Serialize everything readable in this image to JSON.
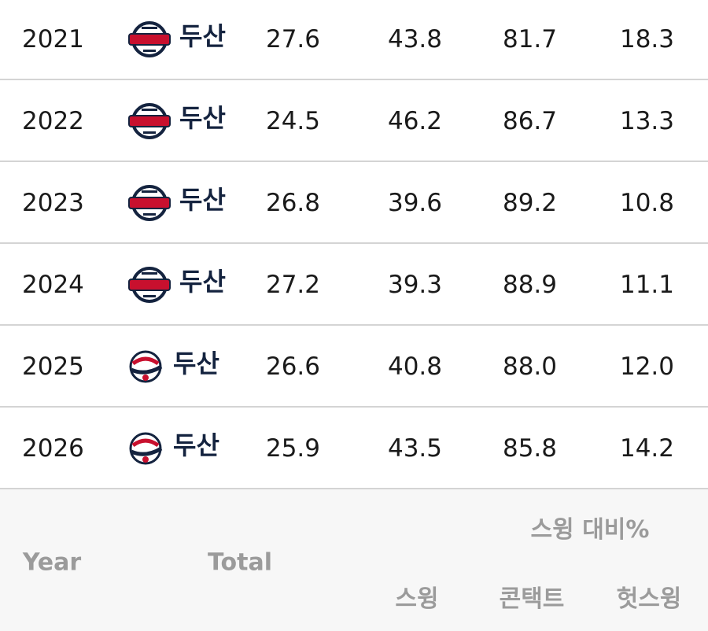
{
  "table": {
    "rows": [
      [
        "2021",
        "두산",
        "27.6",
        "43.8",
        "81.7",
        "18.3"
      ],
      [
        "2022",
        "두산",
        "24.5",
        "46.2",
        "86.7",
        "13.3"
      ],
      [
        "2023",
        "두산",
        "26.8",
        "39.6",
        "89.2",
        "10.8"
      ],
      [
        "2024",
        "두산",
        "27.2",
        "39.3",
        "88.9",
        "11.1"
      ],
      [
        "2025",
        "두산",
        "26.6",
        "40.8",
        "88.0",
        "12.0"
      ],
      [
        "2026",
        "두산",
        "25.9",
        "43.5",
        "85.8",
        "14.2"
      ]
    ],
    "header": {
      "group": "스윙 대비%",
      "year": "Year",
      "total": "Total",
      "swing": "스윙",
      "contact": "콘택트",
      "whiff": "헛스윙"
    }
  }
}
